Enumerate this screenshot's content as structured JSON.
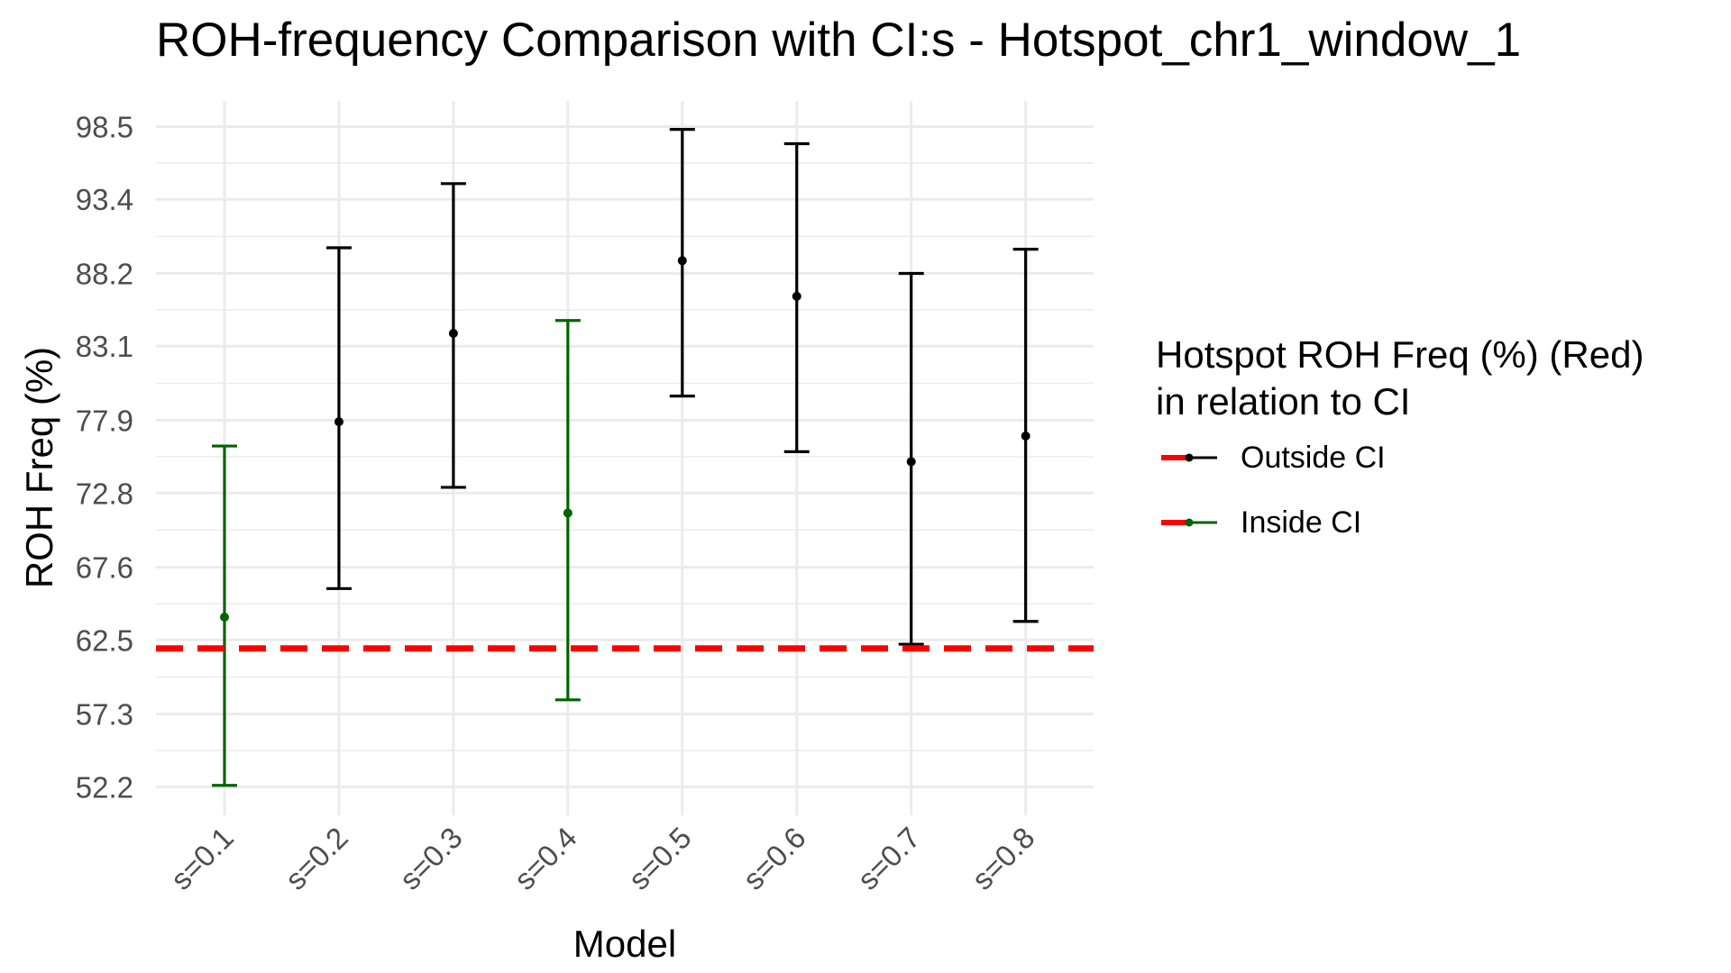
{
  "chart_data": {
    "type": "errorbar",
    "title": "ROH-frequency Comparison with CI:s -  Hotspot_chr1_window_1",
    "xlabel": "Model",
    "ylabel": "ROH Freq (%)",
    "categories": [
      "s=0.1",
      "s=0.2",
      "s=0.3",
      "s=0.4",
      "s=0.5",
      "s=0.6",
      "s=0.7",
      "s=0.8"
    ],
    "y_ticks": [
      "52.2",
      "57.3",
      "62.5",
      "67.6",
      "72.8",
      "77.9",
      "83.1",
      "88.2",
      "93.4",
      "98.5"
    ],
    "ylim": [
      50.2,
      100.3
    ],
    "grid": true,
    "series": [
      {
        "name": "Outside CI",
        "color": "#000000",
        "points": [
          {
            "category": "s=0.2",
            "value": 77.8,
            "lower": 66.1,
            "upper": 90.0
          },
          {
            "category": "s=0.3",
            "value": 84.0,
            "lower": 73.2,
            "upper": 94.5
          },
          {
            "category": "s=0.5",
            "value": 89.1,
            "lower": 79.6,
            "upper": 98.3
          },
          {
            "category": "s=0.6",
            "value": 86.6,
            "lower": 75.7,
            "upper": 97.3
          },
          {
            "category": "s=0.7",
            "value": 75.0,
            "lower": 62.2,
            "upper": 88.2
          },
          {
            "category": "s=0.8",
            "value": 76.8,
            "lower": 63.8,
            "upper": 89.9
          }
        ]
      },
      {
        "name": "Inside CI",
        "color": "#006400",
        "points": [
          {
            "category": "s=0.1",
            "value": 64.1,
            "lower": 52.3,
            "upper": 76.1
          },
          {
            "category": "s=0.4",
            "value": 71.4,
            "lower": 58.3,
            "upper": 84.9
          }
        ]
      }
    ],
    "reference_line": {
      "value": 61.9,
      "color": "#ff0000",
      "style": "dashed"
    },
    "legend": {
      "title": "Hotspot ROH Freq (%) (Red)\nin relation to CI",
      "placement": "right",
      "items": [
        {
          "label": "Outside CI",
          "color": "#000000"
        },
        {
          "label": "Inside CI",
          "color": "#006400"
        }
      ]
    }
  }
}
